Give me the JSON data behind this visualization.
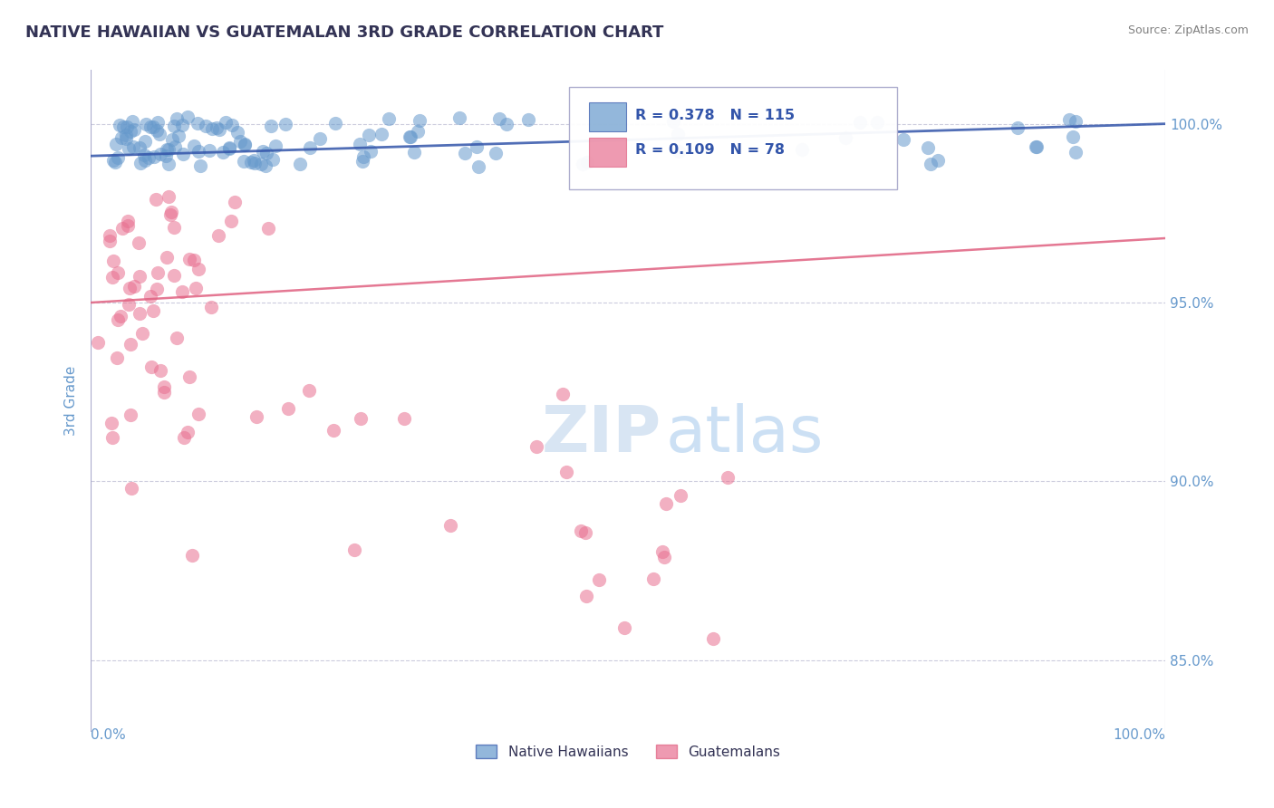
{
  "title": "NATIVE HAWAIIAN VS GUATEMALAN 3RD GRADE CORRELATION CHART",
  "source": "Source: ZipAtlas.com",
  "ylabel": "3rd Grade",
  "yticks": [
    85.0,
    90.0,
    95.0,
    100.0
  ],
  "ytick_labels": [
    "85.0%",
    "90.0%",
    "95.0%",
    "100.0%"
  ],
  "xlim": [
    0.0,
    100.0
  ],
  "ylim": [
    83.0,
    101.5
  ],
  "watermark_zip": "ZIP",
  "watermark_atlas": "atlas",
  "legend_r1": "R = 0.378",
  "legend_n1": "N = 115",
  "legend_r2": "R = 0.109",
  "legend_n2": "N = 78",
  "legend_label1": "Native Hawaiians",
  "legend_label2": "Guatemalans",
  "blue_color": "#6699CC",
  "pink_color": "#E87090",
  "blue_line_color": "#3355AA",
  "pink_line_color": "#E06080",
  "title_color": "#333355",
  "axis_color": "#6699CC",
  "grid_color": "#CCCCDD",
  "blue_line_x": [
    0.0,
    100.0
  ],
  "blue_line_y": [
    99.1,
    100.0
  ],
  "pink_line_x": [
    0.0,
    100.0
  ],
  "pink_line_y": [
    95.0,
    96.8
  ]
}
